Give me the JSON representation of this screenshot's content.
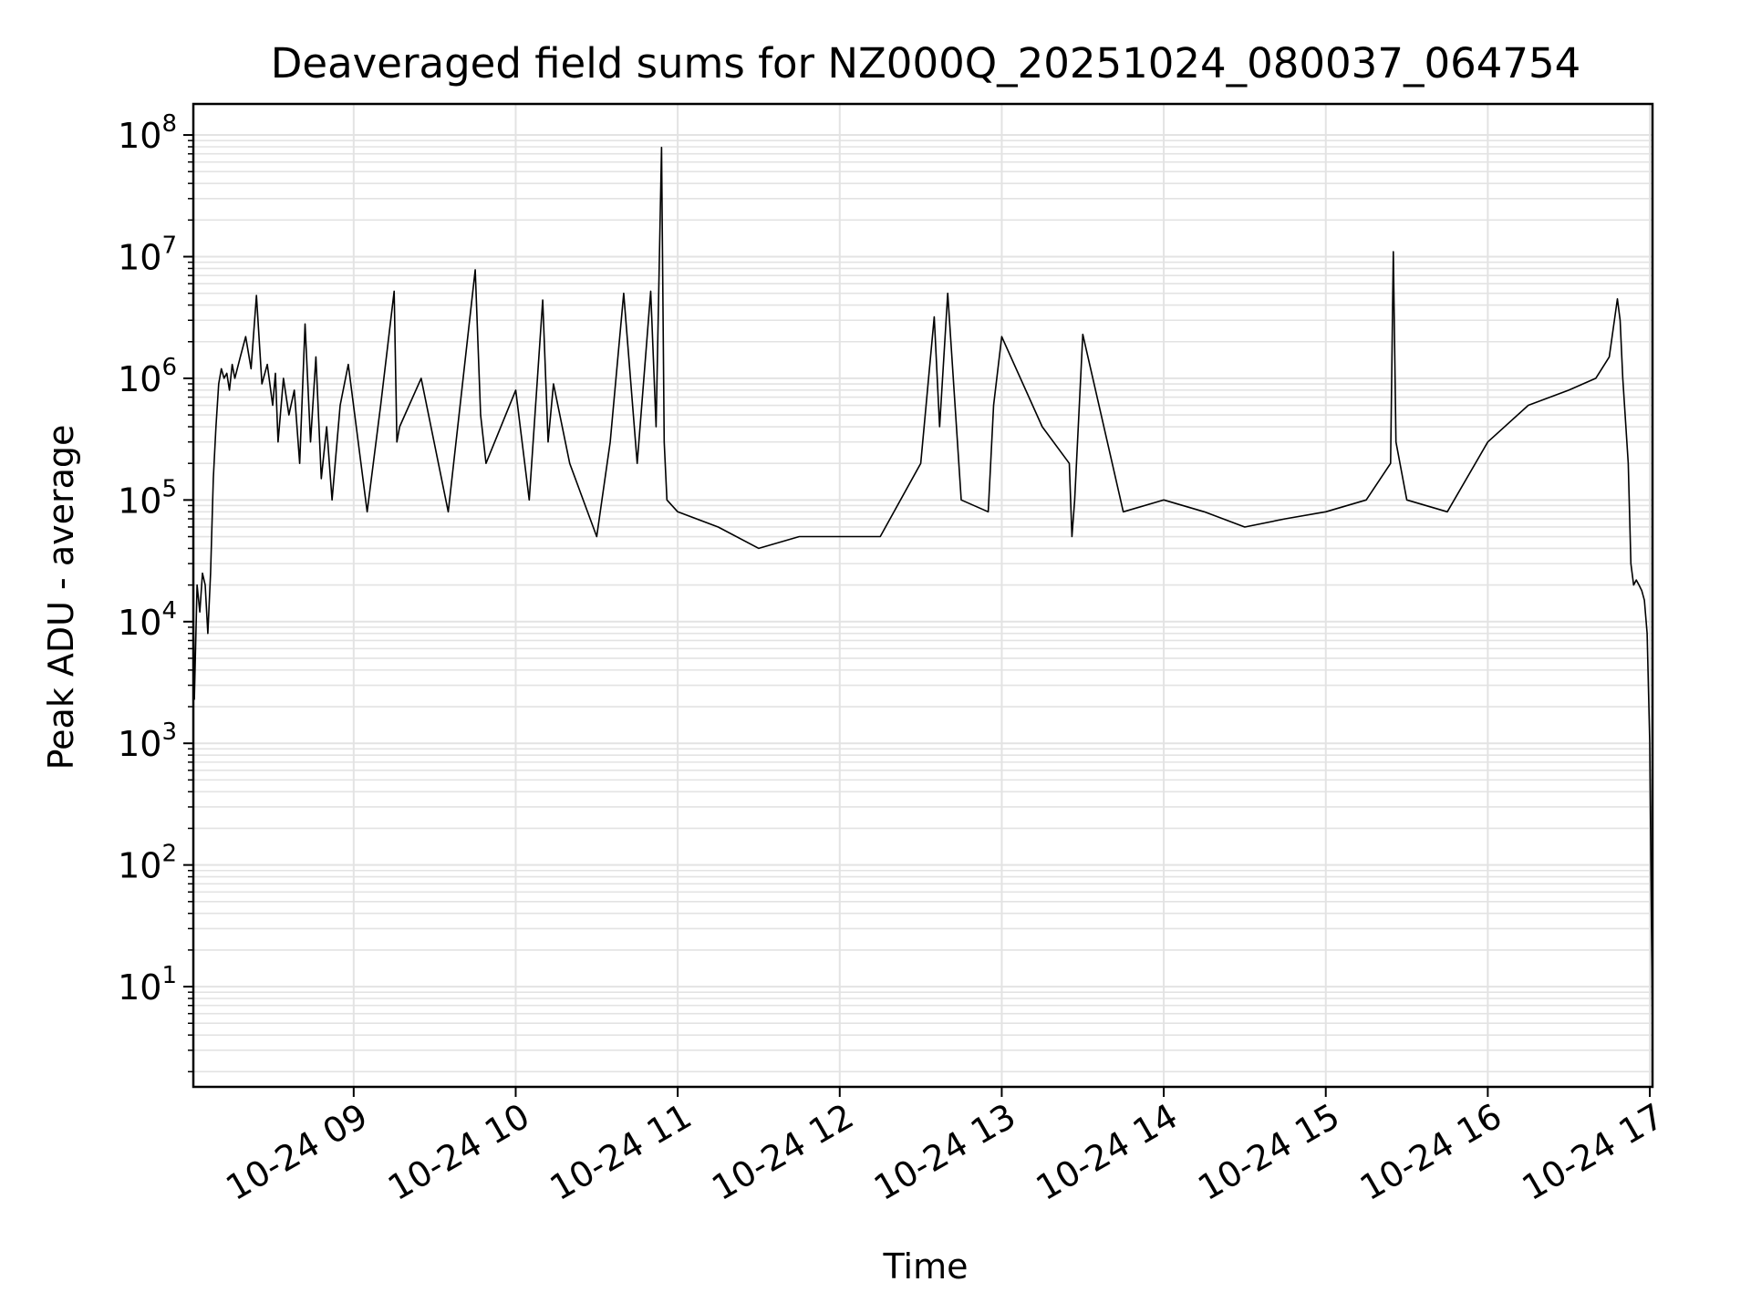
{
  "chart_data": {
    "type": "line",
    "title": "Deaveraged field sums for NZ000Q_20251024_080037_064754",
    "xlabel": "Time",
    "ylabel": "Peak ADU - average",
    "y_scale": "log",
    "ylim": [
      1.5,
      180000000
    ],
    "xlim": [
      "2025-10-24 08:00:37",
      "2025-10-24 17:01:00"
    ],
    "x_ticks": [
      {
        "value": "2025-10-24 09:00",
        "label": "10-24 09"
      },
      {
        "value": "2025-10-24 10:00",
        "label": "10-24 10"
      },
      {
        "value": "2025-10-24 11:00",
        "label": "10-24 11"
      },
      {
        "value": "2025-10-24 12:00",
        "label": "10-24 12"
      },
      {
        "value": "2025-10-24 13:00",
        "label": "10-24 13"
      },
      {
        "value": "2025-10-24 14:00",
        "label": "10-24 14"
      },
      {
        "value": "2025-10-24 15:00",
        "label": "10-24 15"
      },
      {
        "value": "2025-10-24 16:00",
        "label": "10-24 16"
      },
      {
        "value": "2025-10-24 17:00",
        "label": "10-24 17"
      }
    ],
    "y_ticks": [
      {
        "value": 10,
        "base": "10",
        "exp": "1"
      },
      {
        "value": 100,
        "base": "10",
        "exp": "2"
      },
      {
        "value": 1000,
        "base": "10",
        "exp": "3"
      },
      {
        "value": 10000,
        "base": "10",
        "exp": "4"
      },
      {
        "value": 100000,
        "base": "10",
        "exp": "5"
      },
      {
        "value": 1000000,
        "base": "10",
        "exp": "6"
      },
      {
        "value": 10000000,
        "base": "10",
        "exp": "7"
      },
      {
        "value": 100000000,
        "base": "10",
        "exp": "8"
      }
    ],
    "grid": true,
    "line_color": "#000000",
    "grid_color": "#e3e3e3",
    "series": [
      {
        "x": [
          "2025-10-24 08:00:37",
          "2025-10-24 08:01",
          "2025-10-24 08:02",
          "2025-10-24 08:03",
          "2025-10-24 08:04",
          "2025-10-24 08:05",
          "2025-10-24 08:06",
          "2025-10-24 08:07",
          "2025-10-24 08:08",
          "2025-10-24 08:09",
          "2025-10-24 08:10",
          "2025-10-24 08:11",
          "2025-10-24 08:12",
          "2025-10-24 08:13",
          "2025-10-24 08:14",
          "2025-10-24 08:15",
          "2025-10-24 08:16",
          "2025-10-24 08:18",
          "2025-10-24 08:20",
          "2025-10-24 08:22",
          "2025-10-24 08:24",
          "2025-10-24 08:26",
          "2025-10-24 08:28",
          "2025-10-24 08:30",
          "2025-10-24 08:31",
          "2025-10-24 08:32",
          "2025-10-24 08:34",
          "2025-10-24 08:36",
          "2025-10-24 08:38",
          "2025-10-24 08:40",
          "2025-10-24 08:42",
          "2025-10-24 08:44",
          "2025-10-24 08:46",
          "2025-10-24 08:48",
          "2025-10-24 08:50",
          "2025-10-24 08:52",
          "2025-10-24 08:55",
          "2025-10-24 08:58",
          "2025-10-24 09:05",
          "2025-10-24 09:10",
          "2025-10-24 09:15",
          "2025-10-24 09:16",
          "2025-10-24 09:17",
          "2025-10-24 09:25",
          "2025-10-24 09:35",
          "2025-10-24 09:45",
          "2025-10-24 09:47",
          "2025-10-24 09:49",
          "2025-10-24 10:00",
          "2025-10-24 10:05",
          "2025-10-24 10:10",
          "2025-10-24 10:12",
          "2025-10-24 10:14",
          "2025-10-24 10:20",
          "2025-10-24 10:30",
          "2025-10-24 10:35",
          "2025-10-24 10:40",
          "2025-10-24 10:45",
          "2025-10-24 10:50",
          "2025-10-24 10:52",
          "2025-10-24 10:54",
          "2025-10-24 10:55",
          "2025-10-24 10:56",
          "2025-10-24 11:00",
          "2025-10-24 11:15",
          "2025-10-24 11:30",
          "2025-10-24 11:45",
          "2025-10-24 12:00",
          "2025-10-24 12:15",
          "2025-10-24 12:30",
          "2025-10-24 12:35",
          "2025-10-24 12:37",
          "2025-10-24 12:40",
          "2025-10-24 12:45",
          "2025-10-24 12:55",
          "2025-10-24 12:57",
          "2025-10-24 13:00",
          "2025-10-24 13:15",
          "2025-10-24 13:25",
          "2025-10-24 13:26",
          "2025-10-24 13:27",
          "2025-10-24 13:30",
          "2025-10-24 13:45",
          "2025-10-24 14:00",
          "2025-10-24 14:15",
          "2025-10-24 14:30",
          "2025-10-24 14:45",
          "2025-10-24 15:00",
          "2025-10-24 15:15",
          "2025-10-24 15:24",
          "2025-10-24 15:25",
          "2025-10-24 15:26",
          "2025-10-24 15:30",
          "2025-10-24 15:45",
          "2025-10-24 16:00",
          "2025-10-24 16:15",
          "2025-10-24 16:30",
          "2025-10-24 16:40",
          "2025-10-24 16:45",
          "2025-10-24 16:48",
          "2025-10-24 16:49",
          "2025-10-24 16:50",
          "2025-10-24 16:52",
          "2025-10-24 16:53",
          "2025-10-24 16:54",
          "2025-10-24 16:55",
          "2025-10-24 16:56",
          "2025-10-24 16:57",
          "2025-10-24 16:58",
          "2025-10-24 16:59",
          "2025-10-24 17:00",
          "2025-10-24 17:01"
        ],
        "y": [
          15000,
          2300,
          20000,
          12000,
          25000,
          20000,
          8000,
          25000,
          150000,
          400000,
          900000,
          1200000,
          1000000,
          1100000,
          800000,
          1300000,
          1000000,
          1500000,
          2200000,
          1200000,
          4800000,
          900000,
          1300000,
          600000,
          1100000,
          300000,
          1000000,
          500000,
          800000,
          200000,
          2800000,
          300000,
          1500000,
          150000,
          400000,
          100000,
          600000,
          1300000,
          80000,
          600000,
          5200000,
          300000,
          400000,
          1000000,
          80000,
          7800000,
          500000,
          200000,
          800000,
          100000,
          4400000,
          300000,
          900000,
          200000,
          50000,
          300000,
          5000000,
          200000,
          5200000,
          400000,
          79000000,
          300000,
          100000,
          80000,
          60000,
          40000,
          50000,
          50000,
          50000,
          200000,
          3200000,
          400000,
          5000000,
          100000,
          80000,
          600000,
          2200000,
          400000,
          200000,
          50000,
          100000,
          2300000,
          80000,
          100000,
          80000,
          60000,
          70000,
          80000,
          100000,
          200000,
          11000000,
          300000,
          100000,
          80000,
          300000,
          600000,
          800000,
          1000000,
          1500000,
          4500000,
          3000000,
          1000000,
          200000,
          30000,
          20000,
          22000,
          20000,
          18000,
          15000,
          8000,
          1000,
          4
        ]
      }
    ]
  }
}
